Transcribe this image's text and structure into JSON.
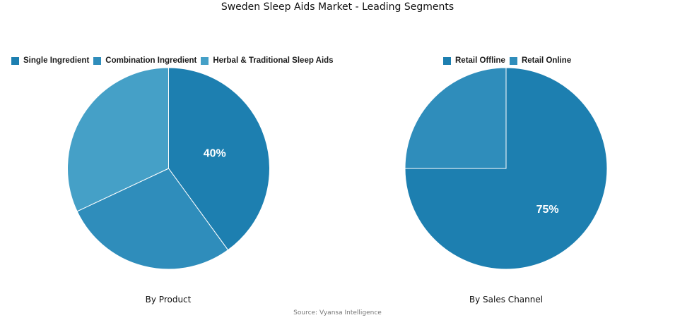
{
  "title": "Sweden Sleep Aids Market - Leading Segments",
  "source": "Source: Vyansa Intelligence",
  "chart_data": [
    {
      "type": "pie",
      "caption": "By Product",
      "legend_position": "top",
      "categories": [
        "Single Ingredient",
        "Combination Ingredient",
        "Herbal & Traditional Sleep Aids"
      ],
      "values": [
        40,
        28,
        32
      ],
      "colors": [
        "#1d7fb0",
        "#2f8dbb",
        "#45a0c7"
      ],
      "data_labels": [
        "40%",
        "",
        ""
      ]
    },
    {
      "type": "pie",
      "caption": "By Sales Channel",
      "legend_position": "top",
      "categories": [
        "Retail Offline",
        "Retail Online"
      ],
      "values": [
        75,
        25
      ],
      "colors": [
        "#1d7fb0",
        "#2f8dbb"
      ],
      "data_labels": [
        "75%",
        ""
      ]
    }
  ]
}
